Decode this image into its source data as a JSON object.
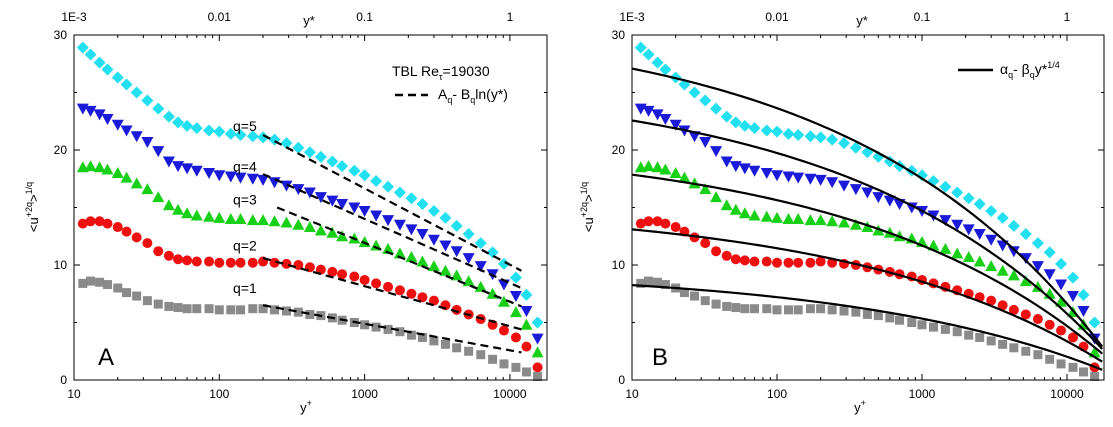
{
  "chart_data": [
    {
      "type": "scatter",
      "panel_label": "A",
      "xlabel": "y",
      "xlabel_sup": "+",
      "ylabel": "<u",
      "ylabel_sup1": "+2q",
      "ylabel_mid": ">",
      "ylabel_sup2": "1/q",
      "top_xlabel": "y*",
      "x_scale": "log",
      "xlim": [
        10,
        18000
      ],
      "ylim": [
        0,
        30
      ],
      "xticks": [
        "10",
        "100",
        "1000",
        "10000"
      ],
      "yticks": [
        "0",
        "10",
        "20",
        "30"
      ],
      "top_ticks": [
        "1E-3",
        "0.01",
        "0.1",
        "1"
      ],
      "legend": {
        "title_main": "TBL Re",
        "title_sub": "τ",
        "title_value": "=19030",
        "line_style": "dashed",
        "label_A": "A",
        "label_Aq": "q",
        "label_dash": "- B",
        "label_Bq": "q",
        "label_tail": "ln(y*)"
      },
      "annotations": [
        "q=5",
        "q=4",
        "q=3",
        "q=2",
        "q=1"
      ],
      "series": [
        {
          "q": 5,
          "color": "#22e0f0",
          "marker": "diamond",
          "x": [
            11.5,
            13,
            15,
            17,
            20,
            23,
            27,
            32,
            38,
            45,
            52,
            60,
            70,
            85,
            100,
            120,
            140,
            170,
            200,
            240,
            290,
            350,
            420,
            500,
            600,
            700,
            850,
            1000,
            1200,
            1450,
            1750,
            2100,
            2500,
            3000,
            3600,
            4300,
            5200,
            6300,
            7600,
            9100,
            11000,
            13000,
            15500
          ],
          "y": [
            28.9,
            28.3,
            27.6,
            27.0,
            26.3,
            25.7,
            25.0,
            24.3,
            23.6,
            22.9,
            22.4,
            22.1,
            21.9,
            21.7,
            21.6,
            21.4,
            21.3,
            21.2,
            21.1,
            20.9,
            20.6,
            20.2,
            19.8,
            19.4,
            19.0,
            18.6,
            18.2,
            17.8,
            17.3,
            16.8,
            16.3,
            15.8,
            15.3,
            14.7,
            14.1,
            13.4,
            12.7,
            11.9,
            11.1,
            10.1,
            8.9,
            7.4,
            5.0
          ]
        },
        {
          "q": 4,
          "color": "#1a1ad8",
          "marker": "triangle-down",
          "x": [
            11.5,
            13,
            15,
            17,
            20,
            23,
            27,
            32,
            38,
            45,
            52,
            60,
            70,
            85,
            100,
            120,
            140,
            170,
            200,
            240,
            290,
            350,
            420,
            500,
            600,
            700,
            850,
            1000,
            1200,
            1450,
            1750,
            2100,
            2500,
            3000,
            3600,
            4300,
            5200,
            6300,
            7600,
            9100,
            11000,
            13000,
            15500
          ],
          "y": [
            23.6,
            23.4,
            23.1,
            22.7,
            22.2,
            21.7,
            21.2,
            20.7,
            19.9,
            19.0,
            18.6,
            18.4,
            18.2,
            18.0,
            17.8,
            17.7,
            17.6,
            17.5,
            17.4,
            17.2,
            16.9,
            16.6,
            16.3,
            15.9,
            15.6,
            15.3,
            15.0,
            14.7,
            14.3,
            13.9,
            13.5,
            13.1,
            12.7,
            12.2,
            11.7,
            11.2,
            10.6,
            9.9,
            9.2,
            8.3,
            7.3,
            6.0,
            3.6
          ]
        },
        {
          "q": 3,
          "color": "#18d018",
          "marker": "triangle-up",
          "x": [
            11.5,
            13,
            15,
            17,
            20,
            23,
            27,
            32,
            38,
            45,
            52,
            60,
            70,
            85,
            100,
            120,
            140,
            170,
            200,
            240,
            290,
            350,
            420,
            500,
            600,
            700,
            850,
            1000,
            1200,
            1450,
            1750,
            2100,
            2500,
            3000,
            3600,
            4300,
            5200,
            6300,
            7600,
            9100,
            11000,
            13000,
            15500
          ],
          "y": [
            18.5,
            18.6,
            18.5,
            18.3,
            18.0,
            17.6,
            17.1,
            16.6,
            15.9,
            15.2,
            14.8,
            14.5,
            14.3,
            14.2,
            14.1,
            14.0,
            14.0,
            13.9,
            13.9,
            13.8,
            13.7,
            13.5,
            13.3,
            13.0,
            12.8,
            12.5,
            12.3,
            12.0,
            11.7,
            11.4,
            11.0,
            10.7,
            10.3,
            9.9,
            9.5,
            9.1,
            8.6,
            8.1,
            7.5,
            6.8,
            5.9,
            4.8,
            2.4
          ]
        },
        {
          "q": 2,
          "color": "#ee1010",
          "marker": "circle",
          "x": [
            11.5,
            13,
            15,
            17,
            20,
            23,
            27,
            32,
            38,
            45,
            52,
            60,
            70,
            85,
            100,
            120,
            140,
            170,
            200,
            240,
            290,
            350,
            420,
            500,
            600,
            700,
            850,
            1000,
            1200,
            1450,
            1750,
            2100,
            2500,
            3000,
            3600,
            4300,
            5200,
            6300,
            7600,
            9100,
            11000,
            13000,
            15500
          ],
          "y": [
            13.6,
            13.8,
            13.8,
            13.6,
            13.3,
            12.9,
            12.4,
            11.9,
            11.2,
            10.8,
            10.5,
            10.4,
            10.3,
            10.3,
            10.2,
            10.2,
            10.2,
            10.2,
            10.3,
            10.2,
            10.1,
            10.0,
            9.8,
            9.6,
            9.4,
            9.2,
            9.0,
            8.7,
            8.4,
            8.1,
            7.8,
            7.5,
            7.2,
            6.9,
            6.5,
            6.1,
            5.7,
            5.3,
            4.8,
            4.3,
            3.7,
            2.9,
            1.1
          ]
        },
        {
          "q": 1,
          "color": "#8a8a8a",
          "marker": "square",
          "x": [
            11.5,
            13,
            15,
            17,
            20,
            23,
            27,
            32,
            38,
            45,
            52,
            60,
            70,
            85,
            100,
            120,
            140,
            170,
            200,
            240,
            290,
            350,
            420,
            500,
            600,
            700,
            850,
            1000,
            1200,
            1450,
            1750,
            2100,
            2500,
            3000,
            3600,
            4300,
            5200,
            6300,
            7600,
            9100,
            11000,
            13000,
            15500
          ],
          "y": [
            8.4,
            8.6,
            8.5,
            8.3,
            8.0,
            7.6,
            7.3,
            6.9,
            6.6,
            6.4,
            6.3,
            6.2,
            6.2,
            6.2,
            6.1,
            6.1,
            6.1,
            6.2,
            6.2,
            6.1,
            6.0,
            5.9,
            5.7,
            5.6,
            5.4,
            5.2,
            5.0,
            4.8,
            4.6,
            4.4,
            4.2,
            3.9,
            3.7,
            3.4,
            3.1,
            2.8,
            2.5,
            2.2,
            1.8,
            1.4,
            1.1,
            0.7,
            0.3
          ]
        }
      ],
      "fit_lines": [
        {
          "x": [
            200,
            12000
          ],
          "y": [
            21.3,
            9.5
          ]
        },
        {
          "x": [
            200,
            12000
          ],
          "y": [
            17.9,
            8.0
          ]
        },
        {
          "x": [
            250,
            12000
          ],
          "y": [
            15.0,
            6.4
          ]
        },
        {
          "x": [
            200,
            12000
          ],
          "y": [
            10.6,
            4.4
          ]
        },
        {
          "x": [
            200,
            12000
          ],
          "y": [
            6.5,
            2.4
          ]
        }
      ]
    },
    {
      "type": "scatter",
      "panel_label": "B",
      "xlabel": "y",
      "xlabel_sup": "+",
      "ylabel": "<u",
      "ylabel_sup1": "+2q",
      "ylabel_mid": ">",
      "ylabel_sup2": "1/q",
      "top_xlabel": "y*",
      "x_scale": "log",
      "xlim": [
        10,
        18000
      ],
      "ylim": [
        0,
        30
      ],
      "xticks": [
        "10",
        "100",
        "1000",
        "10000"
      ],
      "yticks": [
        "0",
        "10",
        "20",
        "30"
      ],
      "top_ticks": [
        "1E-3",
        "0.01",
        "0.1",
        "1"
      ],
      "legend": {
        "line_style": "solid",
        "label_alpha": "α",
        "label_aq": "q",
        "label_dash": "- β",
        "label_bq": "q",
        "label_tail": "y*",
        "label_exp": "1/4"
      },
      "series_same_as_panel": "A",
      "fit_curves": [
        {
          "alpha": 31.5,
          "beta": 29.2
        },
        {
          "alpha": 26.2,
          "beta": 24.0
        },
        {
          "alpha": 20.7,
          "beta": 18.8
        },
        {
          "alpha": 15.2,
          "beta": 13.9
        },
        {
          "alpha": 9.6,
          "beta": 8.9
        }
      ]
    }
  ]
}
